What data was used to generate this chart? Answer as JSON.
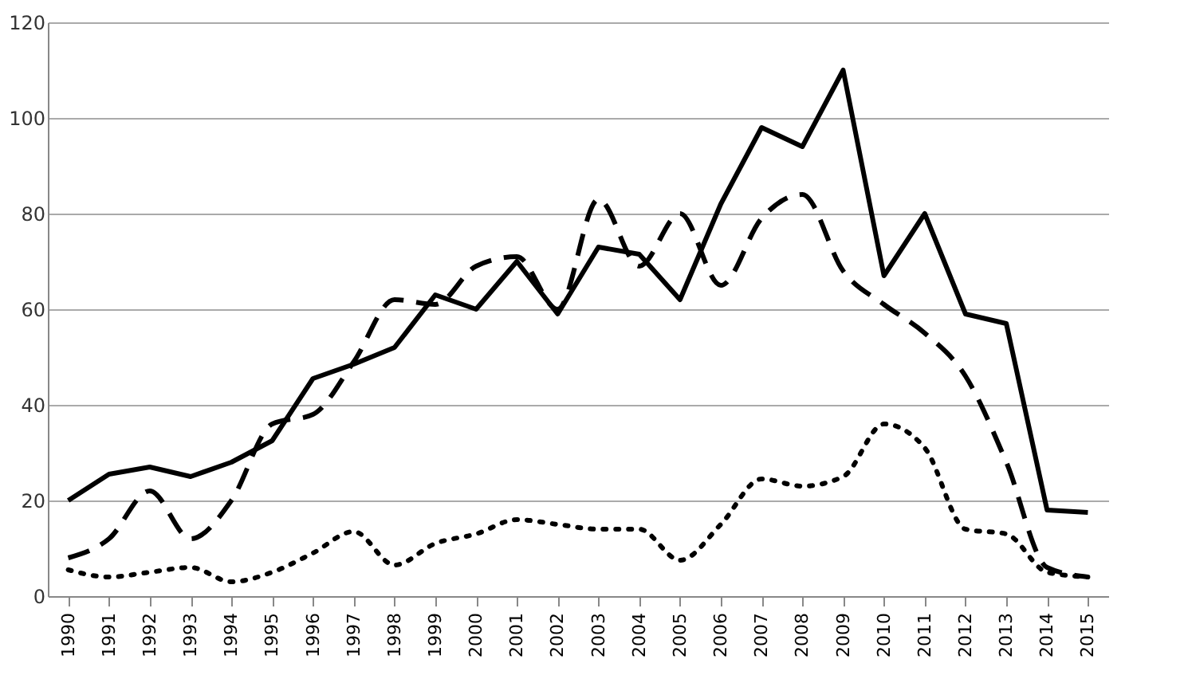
{
  "chart_data": {
    "type": "line",
    "categories": [
      "1990",
      "1991",
      "1992",
      "1993",
      "1994",
      "1995",
      "1996",
      "1997",
      "1998",
      "1999",
      "2000",
      "2001",
      "2002",
      "2003",
      "2004",
      "2005",
      "2006",
      "2007",
      "2008",
      "2009",
      "2010",
      "2011",
      "2012",
      "2013",
      "2014",
      "2015"
    ],
    "series": [
      {
        "color": "#000000",
        "line_style": "solid",
        "values": [
          20,
          25.5,
          27,
          25,
          28,
          32.5,
          45.5,
          48.5,
          52,
          63,
          60,
          70,
          59,
          73,
          71.5,
          62,
          82,
          98,
          94,
          110,
          67,
          80,
          59,
          57,
          18,
          17.5
        ]
      },
      {
        "color": "#000000",
        "line_style": "dashed",
        "values": [
          8,
          12,
          22,
          12,
          20,
          36,
          38,
          49,
          62,
          61,
          69,
          71,
          60,
          83,
          69,
          80,
          65,
          79,
          84,
          68,
          61,
          55,
          46,
          28,
          6,
          4
        ]
      },
      {
        "color": "#000000",
        "line_style": "dotted",
        "values": [
          5.5,
          4,
          5,
          6,
          3,
          5,
          9,
          13.5,
          6.5,
          11,
          13,
          16,
          15,
          14,
          14,
          7.5,
          15,
          24.5,
          23,
          25,
          36,
          31,
          14,
          13,
          5,
          4
        ]
      }
    ],
    "ylim": [
      0,
      120
    ],
    "yticks": [
      0,
      20,
      40,
      60,
      80,
      100,
      120
    ],
    "grid": "y",
    "legend": false
  }
}
